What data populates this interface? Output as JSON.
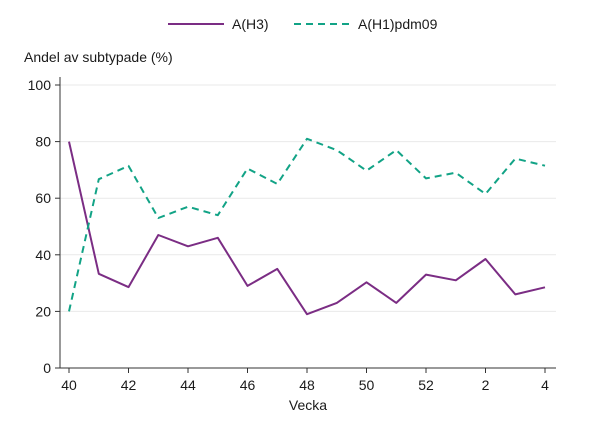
{
  "chart_data": {
    "type": "line",
    "xlabel": "Vecka",
    "ylabel": "Andel av subtypade (%)",
    "x": [
      "40",
      "41",
      "42",
      "43",
      "44",
      "45",
      "46",
      "47",
      "48",
      "49",
      "50",
      "51",
      "52",
      "1",
      "2",
      "3",
      "4"
    ],
    "x_tick_labels": [
      "40",
      "42",
      "44",
      "46",
      "48",
      "50",
      "52",
      "2",
      "4"
    ],
    "ylim": [
      0,
      100
    ],
    "y_ticks": [
      0,
      20,
      40,
      60,
      80,
      100
    ],
    "grid": true,
    "legend_position": "top",
    "series": [
      {
        "name": "A(H3)",
        "color": "#7b2d84",
        "line_style": "solid",
        "values": [
          80,
          33.3,
          28.6,
          47,
          43,
          46,
          29,
          35,
          19,
          23,
          30.3,
          23,
          33,
          31,
          38.5,
          26,
          28.5
        ]
      },
      {
        "name": "A(H1)pdm09",
        "color": "#12a386",
        "line_style": "dashed",
        "values": [
          20,
          66.7,
          71.4,
          53,
          57,
          54,
          70.5,
          65,
          81,
          77,
          69.7,
          77,
          67,
          69,
          61.5,
          74,
          71.5
        ]
      }
    ]
  }
}
